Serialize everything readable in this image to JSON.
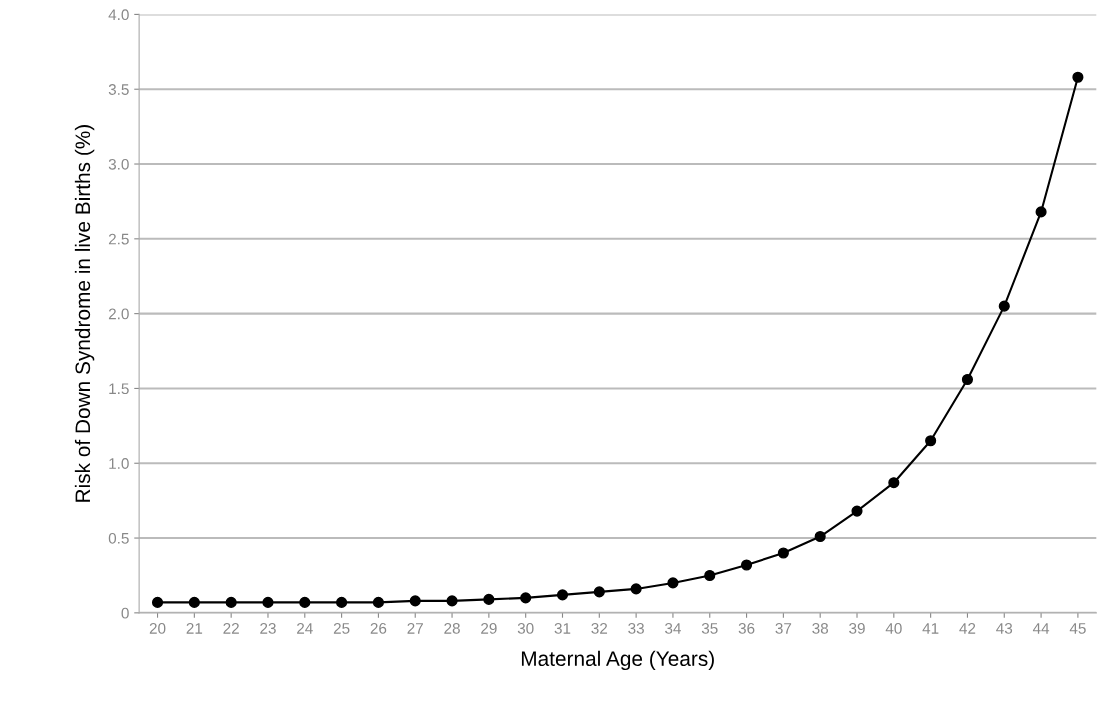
{
  "chart_data": {
    "type": "line",
    "xlabel": "Maternal Age (Years)",
    "ylabel": "Risk of Down Syndrome in live Births (%)",
    "categories": [
      "20",
      "21",
      "22",
      "23",
      "24",
      "25",
      "26",
      "27",
      "28",
      "29",
      "30",
      "31",
      "32",
      "33",
      "34",
      "35",
      "36",
      "37",
      "38",
      "39",
      "40",
      "41",
      "42",
      "43",
      "44",
      "45"
    ],
    "series": [
      {
        "color": "#000000",
        "values": [
          0.07,
          0.07,
          0.07,
          0.07,
          0.07,
          0.07,
          0.07,
          0.08,
          0.08,
          0.09,
          0.1,
          0.12,
          0.14,
          0.16,
          0.2,
          0.25,
          0.32,
          0.4,
          0.51,
          0.68,
          0.87,
          1.15,
          1.56,
          2.05,
          2.68,
          3.58
        ]
      }
    ],
    "ylim": [
      0,
      4.0
    ],
    "yticks": [
      0,
      {
        "value": 0.5,
        "label": "0.5"
      },
      {
        "value": 1.0,
        "label": "1.0"
      },
      {
        "value": 1.5,
        "label": "1.5"
      },
      {
        "value": 2.0,
        "label": "2.0"
      },
      {
        "value": 2.5,
        "label": "2.5"
      },
      {
        "value": 3.0,
        "label": "3.0"
      },
      {
        "value": 3.5,
        "label": "3.5"
      },
      {
        "value": 4.0,
        "label": "4.0"
      }
    ],
    "grid": "y",
    "legend": false,
    "marker": "circle",
    "line_style": "solid"
  }
}
